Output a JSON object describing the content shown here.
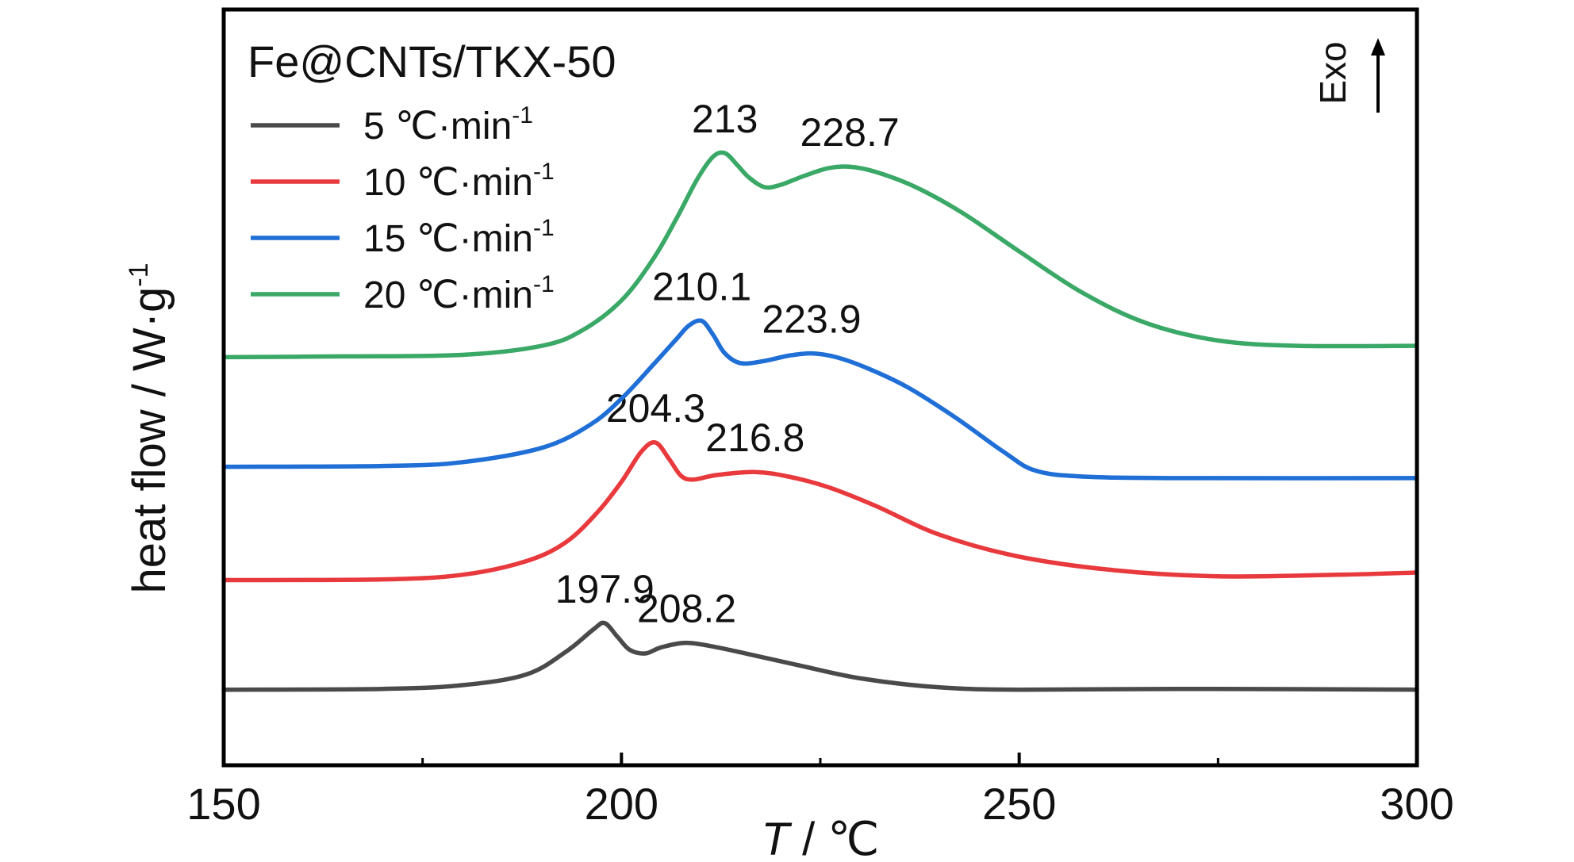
{
  "chart_data": {
    "type": "line",
    "title": "Fe@CNTs/TKX-50",
    "xlabel_italic": "T",
    "xlabel_rest": " / ℃",
    "ylabel_main": "heat flow / W·g",
    "ylabel_sup": "-1",
    "exo_label": "Exo",
    "xlim": [
      150,
      300
    ],
    "x_ticks": [
      150,
      200,
      250,
      300
    ],
    "x_tick_labels": [
      "150",
      "200",
      "250",
      "300"
    ],
    "x_minor_ticks": [
      175,
      225,
      275
    ],
    "ylim": [
      0,
      100
    ],
    "y_ticks_shown": false,
    "grid": false,
    "legend_position": "top-left",
    "series": [
      {
        "name_main": "5 ℃·min",
        "name_sup": "-1",
        "color": "#4a4a4a",
        "points": [
          [
            150,
            10.0
          ],
          [
            170,
            10.1
          ],
          [
            180,
            10.6
          ],
          [
            188,
            12.0
          ],
          [
            193,
            15.0
          ],
          [
            196.5,
            18.0
          ],
          [
            197.9,
            18.8
          ],
          [
            199.5,
            17.0
          ],
          [
            201,
            15.3
          ],
          [
            203,
            14.8
          ],
          [
            205,
            15.6
          ],
          [
            208.2,
            16.2
          ],
          [
            212,
            15.6
          ],
          [
            216,
            14.7
          ],
          [
            222,
            13.3
          ],
          [
            230,
            11.5
          ],
          [
            240,
            10.3
          ],
          [
            250,
            10.0
          ],
          [
            270,
            10.1
          ],
          [
            300,
            10.0
          ]
        ],
        "peaks": [
          {
            "x": 197.9,
            "y": 18.8,
            "label": "197.9"
          },
          {
            "x": 208.2,
            "y": 16.2,
            "label": "208.2"
          }
        ]
      },
      {
        "name_main": "10 ℃·min",
        "name_sup": "-1",
        "color": "#e8393d",
        "points": [
          [
            150,
            24.5
          ],
          [
            170,
            24.6
          ],
          [
            180,
            25.2
          ],
          [
            188,
            27.0
          ],
          [
            193,
            29.5
          ],
          [
            197,
            33.5
          ],
          [
            200,
            37.5
          ],
          [
            202.5,
            41.5
          ],
          [
            204.3,
            42.7
          ],
          [
            206,
            40.5
          ],
          [
            207.5,
            38.3
          ],
          [
            209,
            37.8
          ],
          [
            212,
            38.4
          ],
          [
            216.8,
            38.8
          ],
          [
            221,
            38.2
          ],
          [
            226,
            36.8
          ],
          [
            232,
            34.3
          ],
          [
            240,
            30.5
          ],
          [
            250,
            27.6
          ],
          [
            262,
            25.8
          ],
          [
            275,
            25.0
          ],
          [
            290,
            25.2
          ],
          [
            300,
            25.5
          ]
        ],
        "peaks": [
          {
            "x": 204.3,
            "y": 42.7,
            "label": "204.3"
          },
          {
            "x": 216.8,
            "y": 38.8,
            "label": "216.8"
          }
        ]
      },
      {
        "name_main": "15 ℃·min",
        "name_sup": "-1",
        "color": "#1f6fd6",
        "points": [
          [
            150,
            39.5
          ],
          [
            170,
            39.6
          ],
          [
            180,
            40.1
          ],
          [
            190,
            42.0
          ],
          [
            196,
            45.0
          ],
          [
            200,
            48.5
          ],
          [
            204,
            53.0
          ],
          [
            207,
            56.5
          ],
          [
            208.5,
            58.2
          ],
          [
            210.1,
            58.8
          ],
          [
            211.5,
            57.0
          ],
          [
            213,
            54.5
          ],
          [
            215,
            53.2
          ],
          [
            218,
            53.5
          ],
          [
            221,
            54.2
          ],
          [
            223.9,
            54.5
          ],
          [
            227,
            54.0
          ],
          [
            231,
            52.5
          ],
          [
            236,
            50.0
          ],
          [
            242,
            46.0
          ],
          [
            248,
            41.5
          ],
          [
            252,
            39.0
          ],
          [
            258,
            38.2
          ],
          [
            270,
            38.0
          ],
          [
            300,
            38.0
          ]
        ],
        "peaks": [
          {
            "x": 210.1,
            "y": 58.8,
            "label": "210.1"
          },
          {
            "x": 223.9,
            "y": 54.5,
            "label": "223.9"
          }
        ]
      },
      {
        "name_main": "20 ℃·min",
        "name_sup": "-1",
        "color": "#3aa866",
        "points": [
          [
            150,
            54.0
          ],
          [
            165,
            54.1
          ],
          [
            180,
            54.3
          ],
          [
            190,
            55.5
          ],
          [
            195,
            57.5
          ],
          [
            200,
            61.5
          ],
          [
            204,
            67.0
          ],
          [
            207,
            72.5
          ],
          [
            209.5,
            77.5
          ],
          [
            211.5,
            80.5
          ],
          [
            213,
            81.0
          ],
          [
            214.5,
            79.5
          ],
          [
            216,
            77.8
          ],
          [
            218,
            76.5
          ],
          [
            220,
            76.8
          ],
          [
            223,
            78.0
          ],
          [
            226,
            79.0
          ],
          [
            228.7,
            79.2
          ],
          [
            232,
            78.5
          ],
          [
            237,
            76.5
          ],
          [
            243,
            73.0
          ],
          [
            250,
            68.0
          ],
          [
            258,
            62.5
          ],
          [
            266,
            58.5
          ],
          [
            275,
            56.2
          ],
          [
            285,
            55.5
          ],
          [
            300,
            55.5
          ]
        ],
        "peaks": [
          {
            "x": 213,
            "y": 81.0,
            "label": "213"
          },
          {
            "x": 228.7,
            "y": 79.2,
            "label": "228.7"
          }
        ]
      }
    ]
  }
}
